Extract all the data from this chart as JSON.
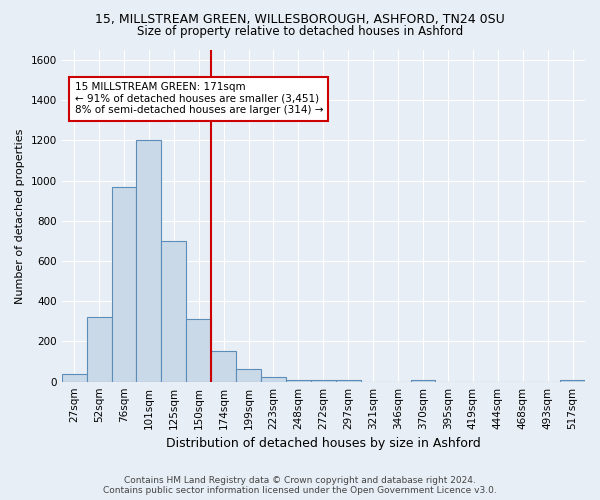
{
  "title_line1": "15, MILLSTREAM GREEN, WILLESBOROUGH, ASHFORD, TN24 0SU",
  "title_line2": "Size of property relative to detached houses in Ashford",
  "xlabel": "Distribution of detached houses by size in Ashford",
  "ylabel": "Number of detached properties",
  "footer_line1": "Contains HM Land Registry data © Crown copyright and database right 2024.",
  "footer_line2": "Contains public sector information licensed under the Open Government Licence v3.0.",
  "categories": [
    "27sqm",
    "52sqm",
    "76sqm",
    "101sqm",
    "125sqm",
    "150sqm",
    "174sqm",
    "199sqm",
    "223sqm",
    "248sqm",
    "272sqm",
    "297sqm",
    "321sqm",
    "346sqm",
    "370sqm",
    "395sqm",
    "419sqm",
    "444sqm",
    "468sqm",
    "493sqm",
    "517sqm"
  ],
  "values": [
    40,
    320,
    970,
    1200,
    700,
    310,
    155,
    65,
    25,
    10,
    10,
    10,
    0,
    0,
    10,
    0,
    0,
    0,
    0,
    0,
    10
  ],
  "bar_color": "#c9d9e8",
  "bar_edge_color": "#5b8db8",
  "ylim": [
    0,
    1650
  ],
  "yticks": [
    0,
    200,
    400,
    600,
    800,
    1000,
    1200,
    1400,
    1600
  ],
  "vline_x_index": 5.5,
  "annotation_text_line1": "15 MILLSTREAM GREEN: 171sqm",
  "annotation_text_line2": "← 91% of detached houses are smaller (3,451)",
  "annotation_text_line3": "8% of semi-detached houses are larger (314) →",
  "annotation_box_color": "#ffffff",
  "annotation_box_edge": "#cc0000",
  "vline_color": "#cc0000",
  "bg_color": "#e8eef5",
  "grid_color": "#ffffff",
  "title_fontsize": 9,
  "subtitle_fontsize": 8.5,
  "ylabel_fontsize": 8,
  "xlabel_fontsize": 9,
  "tick_fontsize": 7.5,
  "footer_fontsize": 6.5
}
